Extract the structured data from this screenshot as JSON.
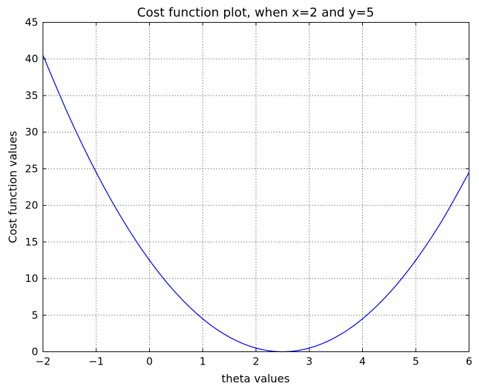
{
  "chart_data": {
    "type": "line",
    "title": "Cost function plot, when x=2 and y=5",
    "xlabel": "theta values",
    "ylabel": "Cost function values",
    "xlim": [
      -2,
      6
    ],
    "ylim": [
      0,
      45
    ],
    "xticks": [
      -2,
      -1,
      0,
      1,
      2,
      3,
      4,
      5,
      6
    ],
    "yticks": [
      0,
      5,
      10,
      15,
      20,
      25,
      30,
      35,
      40,
      45
    ],
    "xtick_labels": [
      "−2",
      "−1",
      "0",
      "1",
      "2",
      "3",
      "4",
      "5",
      "6"
    ],
    "ytick_labels": [
      "0",
      "5",
      "10",
      "15",
      "20",
      "25",
      "30",
      "35",
      "40",
      "45"
    ],
    "grid": true,
    "series": [
      {
        "color": "#0000ff",
        "x": [
          -2,
          -1.5,
          -1,
          -0.5,
          0,
          0.5,
          1,
          1.5,
          2,
          2.5,
          3,
          3.5,
          4,
          4.5,
          5,
          5.5,
          6
        ],
        "values": [
          40.5,
          32,
          24.5,
          18,
          12.5,
          8,
          4.5,
          2,
          0.5,
          0,
          0.5,
          2,
          4.5,
          8,
          12.5,
          18,
          24.5
        ]
      }
    ]
  }
}
